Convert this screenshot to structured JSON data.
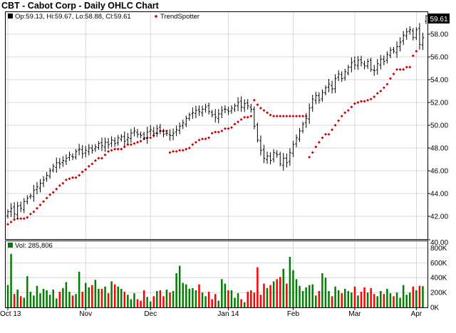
{
  "title": "CBT - Cabot Corp - Daily OHLC Chart",
  "price_panel": {
    "ohlc_label": "Op:59.13, Hi:59.67, Lo:58.88, Cl:59.61",
    "indicator_label": "TrendSpotter",
    "last_price_label": "59.61"
  },
  "volume_panel": {
    "volume_label": "Vol: 285,806"
  },
  "colors": {
    "up_volume": "#007f00",
    "down_volume": "#ff0000",
    "neutral_volume": "#0000cc",
    "trendspotter": "#cc0000",
    "ohlc": "#000000",
    "grid": "#c8c8c8"
  },
  "chart_data": [
    {
      "type": "ohlc",
      "title": "CBT - Cabot Corp - Daily OHLC Chart",
      "x_tick_labels": [
        "Oct 13",
        "Nov",
        "Dec",
        "Jan 14",
        "Feb",
        "Mar",
        "Apr"
      ],
      "x_tick_bar_index": [
        0,
        24,
        44,
        68,
        88,
        107,
        126
      ],
      "y_tick_labels": [
        "42.00",
        "44.00",
        "46.00",
        "48.00",
        "50.00",
        "52.00",
        "54.00",
        "56.00",
        "58.00"
      ],
      "ylim": [
        40,
        60
      ],
      "grid": true,
      "last_close": 59.61,
      "last_bar": {
        "open": 59.13,
        "high": 59.67,
        "low": 58.88,
        "close": 59.61
      },
      "closes": [
        42.4,
        42.7,
        42.2,
        42.9,
        42.7,
        43.3,
        43.6,
        43.8,
        44.3,
        44.6,
        44.9,
        45.2,
        45.6,
        46.0,
        46.4,
        46.7,
        46.6,
        46.9,
        47.1,
        47.4,
        47.2,
        47.7,
        47.9,
        47.5,
        47.8,
        48.0,
        47.8,
        48.1,
        48.4,
        48.2,
        48.5,
        48.3,
        48.7,
        48.4,
        48.9,
        49.0,
        48.6,
        48.9,
        49.3,
        49.5,
        49.2,
        49.1,
        48.9,
        49.4,
        49.6,
        49.3,
        49.7,
        49.5,
        49.2,
        49.3,
        49.1,
        49.3,
        49.6,
        49.9,
        50.2,
        50.6,
        50.9,
        51.1,
        51.3,
        51.2,
        51.4,
        51.6,
        51.2,
        50.9,
        50.7,
        51.0,
        51.3,
        51.4,
        51.2,
        51.5,
        51.7,
        52.0,
        51.6,
        51.9,
        51.7,
        51.4,
        49.9,
        48.7,
        47.8,
        47.1,
        47.3,
        46.9,
        47.6,
        47.4,
        46.6,
        47.1,
        46.7,
        47.6,
        48.3,
        48.9,
        49.5,
        50.1,
        50.6,
        51.5,
        52.3,
        52.6,
        52.2,
        52.9,
        53.3,
        53.6,
        53.2,
        54.1,
        54.5,
        54.1,
        54.7,
        55.1,
        55.5,
        55.3,
        55.7,
        55.5,
        55.2,
        55.6,
        54.9,
        54.8,
        55.4,
        55.8,
        55.6,
        56.2,
        56.6,
        56.5,
        56.9,
        57.3,
        57.9,
        58.2,
        58.4,
        57.7,
        58.4,
        57.1,
        57.7,
        59.61
      ]
    },
    {
      "type": "scatter",
      "name": "TrendSpotter",
      "values": [
        41.3,
        41.5,
        41.7,
        41.8,
        41.8,
        41.8,
        41.9,
        42.2,
        42.4,
        42.7,
        43.0,
        43.3,
        43.6,
        43.9,
        44.1,
        44.4,
        44.7,
        44.9,
        45.2,
        45.3,
        45.4,
        45.4,
        45.6,
        45.9,
        46.1,
        46.4,
        46.6,
        46.9,
        47.1,
        47.1,
        47.4,
        47.7,
        47.8,
        47.9,
        47.9,
        47.9,
        48.1,
        48.3,
        48.3,
        48.4,
        48.5,
        48.6,
        48.8,
        48.9,
        48.9,
        49.1,
        49.3,
        49.5,
        49.5,
        49.5,
        47.6,
        47.7,
        47.7,
        47.8,
        47.8,
        47.9,
        48.0,
        48.3,
        48.5,
        48.7,
        48.8,
        48.8,
        48.9,
        49.3,
        49.4,
        49.4,
        49.5,
        49.7,
        49.7,
        49.8,
        50.1,
        50.3,
        50.5,
        50.7,
        50.7,
        50.8,
        52.2,
        51.8,
        51.5,
        51.3,
        51.1,
        50.9,
        50.8,
        50.8,
        50.8,
        50.8,
        50.8,
        50.8,
        50.8,
        50.8,
        50.8,
        50.8,
        50.8,
        47.2,
        47.6,
        48.1,
        48.5,
        48.9,
        49.2,
        49.2,
        49.6,
        50.0,
        50.4,
        50.8,
        51.1,
        51.3,
        51.6,
        51.9,
        52.0,
        52.1,
        52.1,
        52.2,
        52.3,
        52.5,
        52.8,
        53.0,
        53.3,
        53.6,
        54.1,
        54.5,
        54.9,
        54.9,
        54.9,
        55.1,
        55.1,
        56.1,
        56.5
      ]
    },
    {
      "type": "bar",
      "name": "Vol",
      "title": "Vol: 285,806",
      "y_tick_labels": [
        "0K",
        "200K",
        "400K",
        "600K",
        "800K"
      ],
      "ylim": [
        0,
        900000
      ],
      "last_volume": 285806,
      "values": [
        300000,
        720000,
        180000,
        240000,
        150000,
        130000,
        420000,
        210000,
        160000,
        290000,
        190000,
        250000,
        230000,
        170000,
        240000,
        120000,
        210000,
        260000,
        340000,
        210000,
        160000,
        180000,
        480000,
        210000,
        330000,
        270000,
        300000,
        370000,
        250000,
        250000,
        280000,
        190000,
        350000,
        310000,
        280000,
        250000,
        210000,
        170000,
        110000,
        190000,
        110000,
        90000,
        230000,
        140000,
        80000,
        150000,
        220000,
        230000,
        150000,
        240000,
        200000,
        220000,
        460000,
        560000,
        330000,
        310000,
        250000,
        260000,
        230000,
        310000,
        200000,
        150000,
        210000,
        110000,
        180000,
        90000,
        380000,
        320000,
        230000,
        230000,
        130000,
        190000,
        110000,
        70000,
        210000,
        230000,
        200000,
        540000,
        170000,
        320000,
        260000,
        300000,
        350000,
        380000,
        410000,
        520000,
        320000,
        680000,
        500000,
        380000,
        290000,
        220000,
        270000,
        300000,
        310000,
        160000,
        220000,
        460000,
        400000,
        220000,
        150000,
        280000,
        230000,
        190000,
        250000,
        220000,
        200000,
        280000,
        160000,
        210000,
        270000,
        200000,
        260000,
        180000,
        150000,
        220000,
        180000,
        250000,
        190000,
        150000,
        200000,
        130000,
        300000,
        170000,
        200000,
        280000,
        230000,
        290000,
        285806
      ],
      "colors": [
        "up",
        "up",
        "down",
        "up",
        "down",
        "up",
        "up",
        "up",
        "up",
        "up",
        "up",
        "up",
        "up",
        "up",
        "up",
        "up",
        "down",
        "up",
        "up",
        "up",
        "down",
        "up",
        "up",
        "down",
        "up",
        "up",
        "down",
        "up",
        "up",
        "down",
        "up",
        "down",
        "up",
        "down",
        "up",
        "up",
        "down",
        "up",
        "up",
        "up",
        "down",
        "down",
        "down",
        "up",
        "up",
        "down",
        "up",
        "down",
        "down",
        "up",
        "down",
        "up",
        "up",
        "up",
        "up",
        "up",
        "up",
        "up",
        "up",
        "down",
        "up",
        "up",
        "down",
        "down",
        "down",
        "up",
        "up",
        "up",
        "down",
        "up",
        "up",
        "up",
        "down",
        "up",
        "down",
        "down",
        "down",
        "down",
        "down",
        "down",
        "up",
        "down",
        "up",
        "down",
        "down",
        "up",
        "down",
        "up",
        "up",
        "up",
        "up",
        "up",
        "up",
        "up",
        "up",
        "up",
        "down",
        "up",
        "up",
        "up",
        "down",
        "up",
        "up",
        "down",
        "up",
        "up",
        "up",
        "down",
        "up",
        "down",
        "down",
        "up",
        "down",
        "down",
        "up",
        "up",
        "down",
        "up",
        "up",
        "down",
        "up",
        "up",
        "up",
        "up",
        "up",
        "down",
        "up",
        "down",
        "up",
        "up"
      ]
    }
  ]
}
